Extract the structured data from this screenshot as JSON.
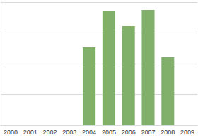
{
  "chart_data": {
    "type": "bar",
    "categories": [
      "2000",
      "2001",
      "2002",
      "2003",
      "2004",
      "2005",
      "2006",
      "2007",
      "2008",
      "2009"
    ],
    "values": [
      null,
      null,
      null,
      null,
      2.53,
      3.7,
      3.22,
      3.75,
      2.21,
      null
    ],
    "color": "#80b06a",
    "ylim": [
      0,
      4
    ],
    "yticks": [
      0,
      1,
      2,
      3,
      4
    ],
    "grid": true,
    "tick_labels": "x"
  }
}
